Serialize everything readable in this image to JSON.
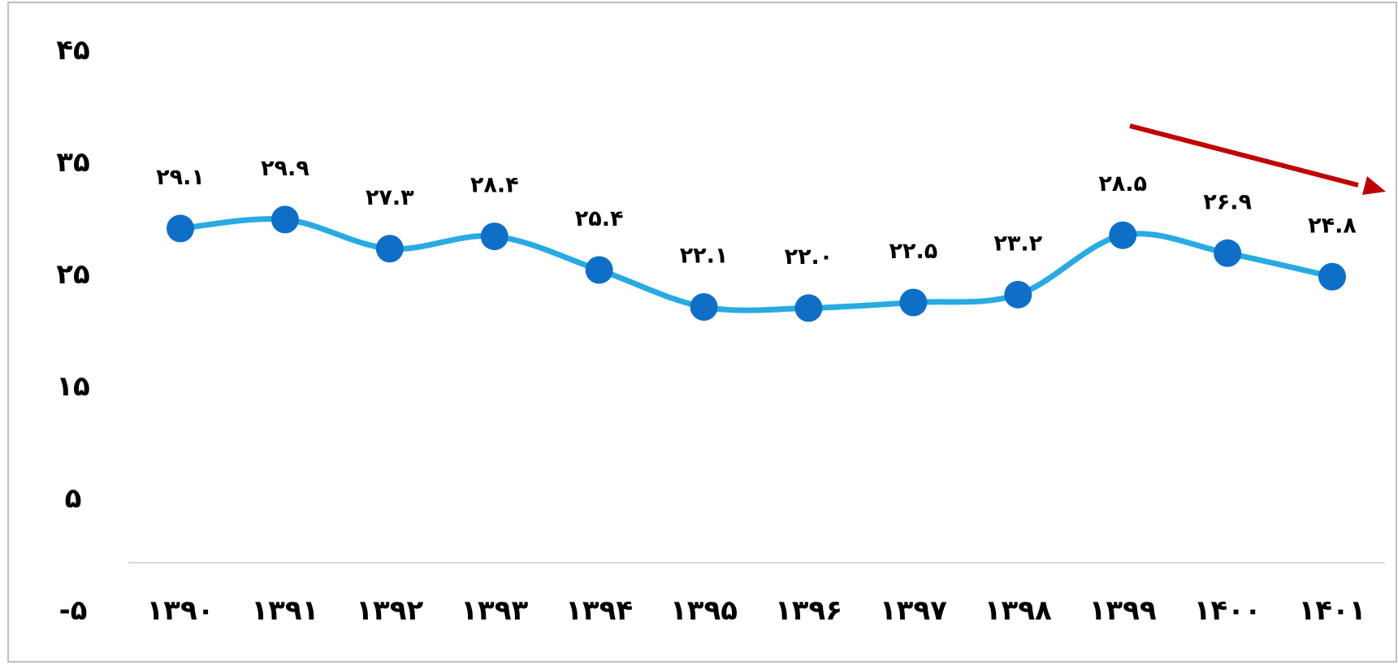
{
  "chart_data": {
    "type": "line",
    "title": "",
    "xlabel": "",
    "ylabel": "",
    "categories": [
      "۱۳۹۰",
      "۱۳۹۱",
      "۱۳۹۲",
      "۱۳۹۳",
      "۱۳۹۴",
      "۱۳۹۵",
      "۱۳۹۶",
      "۱۳۹۷",
      "۱۳۹۸",
      "۱۳۹۹",
      "۱۴۰۰",
      "۱۴۰۱"
    ],
    "series": [
      {
        "values": [
          29.1,
          29.9,
          27.3,
          28.4,
          25.4,
          22.1,
          22.0,
          22.5,
          23.2,
          28.5,
          26.9,
          24.8
        ],
        "data_labels": [
          "۲۹.۱",
          "۲۹.۹",
          "۲۷.۳",
          "۲۸.۴",
          "۲۵.۴",
          "۲۲.۱",
          "۲۲.۰",
          "۲۲.۵",
          "۲۳.۲",
          "۲۸.۵",
          "۲۶.۹",
          "۲۴.۸"
        ]
      }
    ],
    "ylim": [
      -5,
      45
    ],
    "yticks": [
      45,
      35,
      25,
      15,
      5,
      -5
    ],
    "ytick_labels": [
      "۴۵",
      "۳۵",
      "۲۵",
      "۱۵",
      "۵",
      "-۵"
    ],
    "grid": false,
    "legend": "none",
    "line_style": "smooth",
    "annotation": "downward trend arrow (red)",
    "colors": {
      "line": "#29abe2",
      "marker": "#0f6fc6",
      "arrow": "#c00000",
      "axis": "#d9d9d9",
      "frame": "#bfbfbf"
    }
  }
}
